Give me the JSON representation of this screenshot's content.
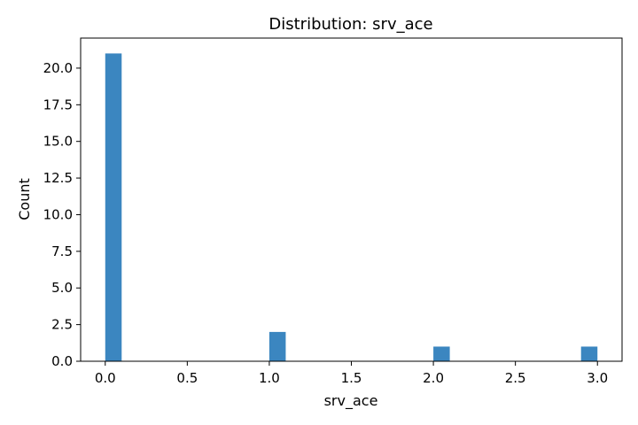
{
  "chart_data": {
    "type": "bar",
    "title": "Distribution: srv_ace",
    "xlabel": "srv_ace",
    "ylabel": "Count",
    "xlim": [
      -0.15,
      3.15
    ],
    "ylim": [
      0,
      22.05
    ],
    "grid": false,
    "legend": "none",
    "bar_color": "#3b86c0",
    "bin_width": 0.1,
    "x_ticks": [
      0.0,
      0.5,
      1.0,
      1.5,
      2.0,
      2.5,
      3.0
    ],
    "x_tick_labels": [
      "0.0",
      "0.5",
      "1.0",
      "1.5",
      "2.0",
      "2.5",
      "3.0"
    ],
    "y_ticks": [
      0.0,
      2.5,
      5.0,
      7.5,
      10.0,
      12.5,
      15.0,
      17.5,
      20.0
    ],
    "y_tick_labels": [
      "0.0",
      "2.5",
      "5.0",
      "7.5",
      "10.0",
      "12.5",
      "15.0",
      "17.5",
      "20.0"
    ],
    "bins": [
      {
        "x_start": 0.0,
        "x_end": 0.1,
        "count": 21
      },
      {
        "x_start": 1.0,
        "x_end": 1.1,
        "count": 2
      },
      {
        "x_start": 2.0,
        "x_end": 2.1,
        "count": 1
      },
      {
        "x_start": 2.9,
        "x_end": 3.0,
        "count": 1
      }
    ]
  }
}
